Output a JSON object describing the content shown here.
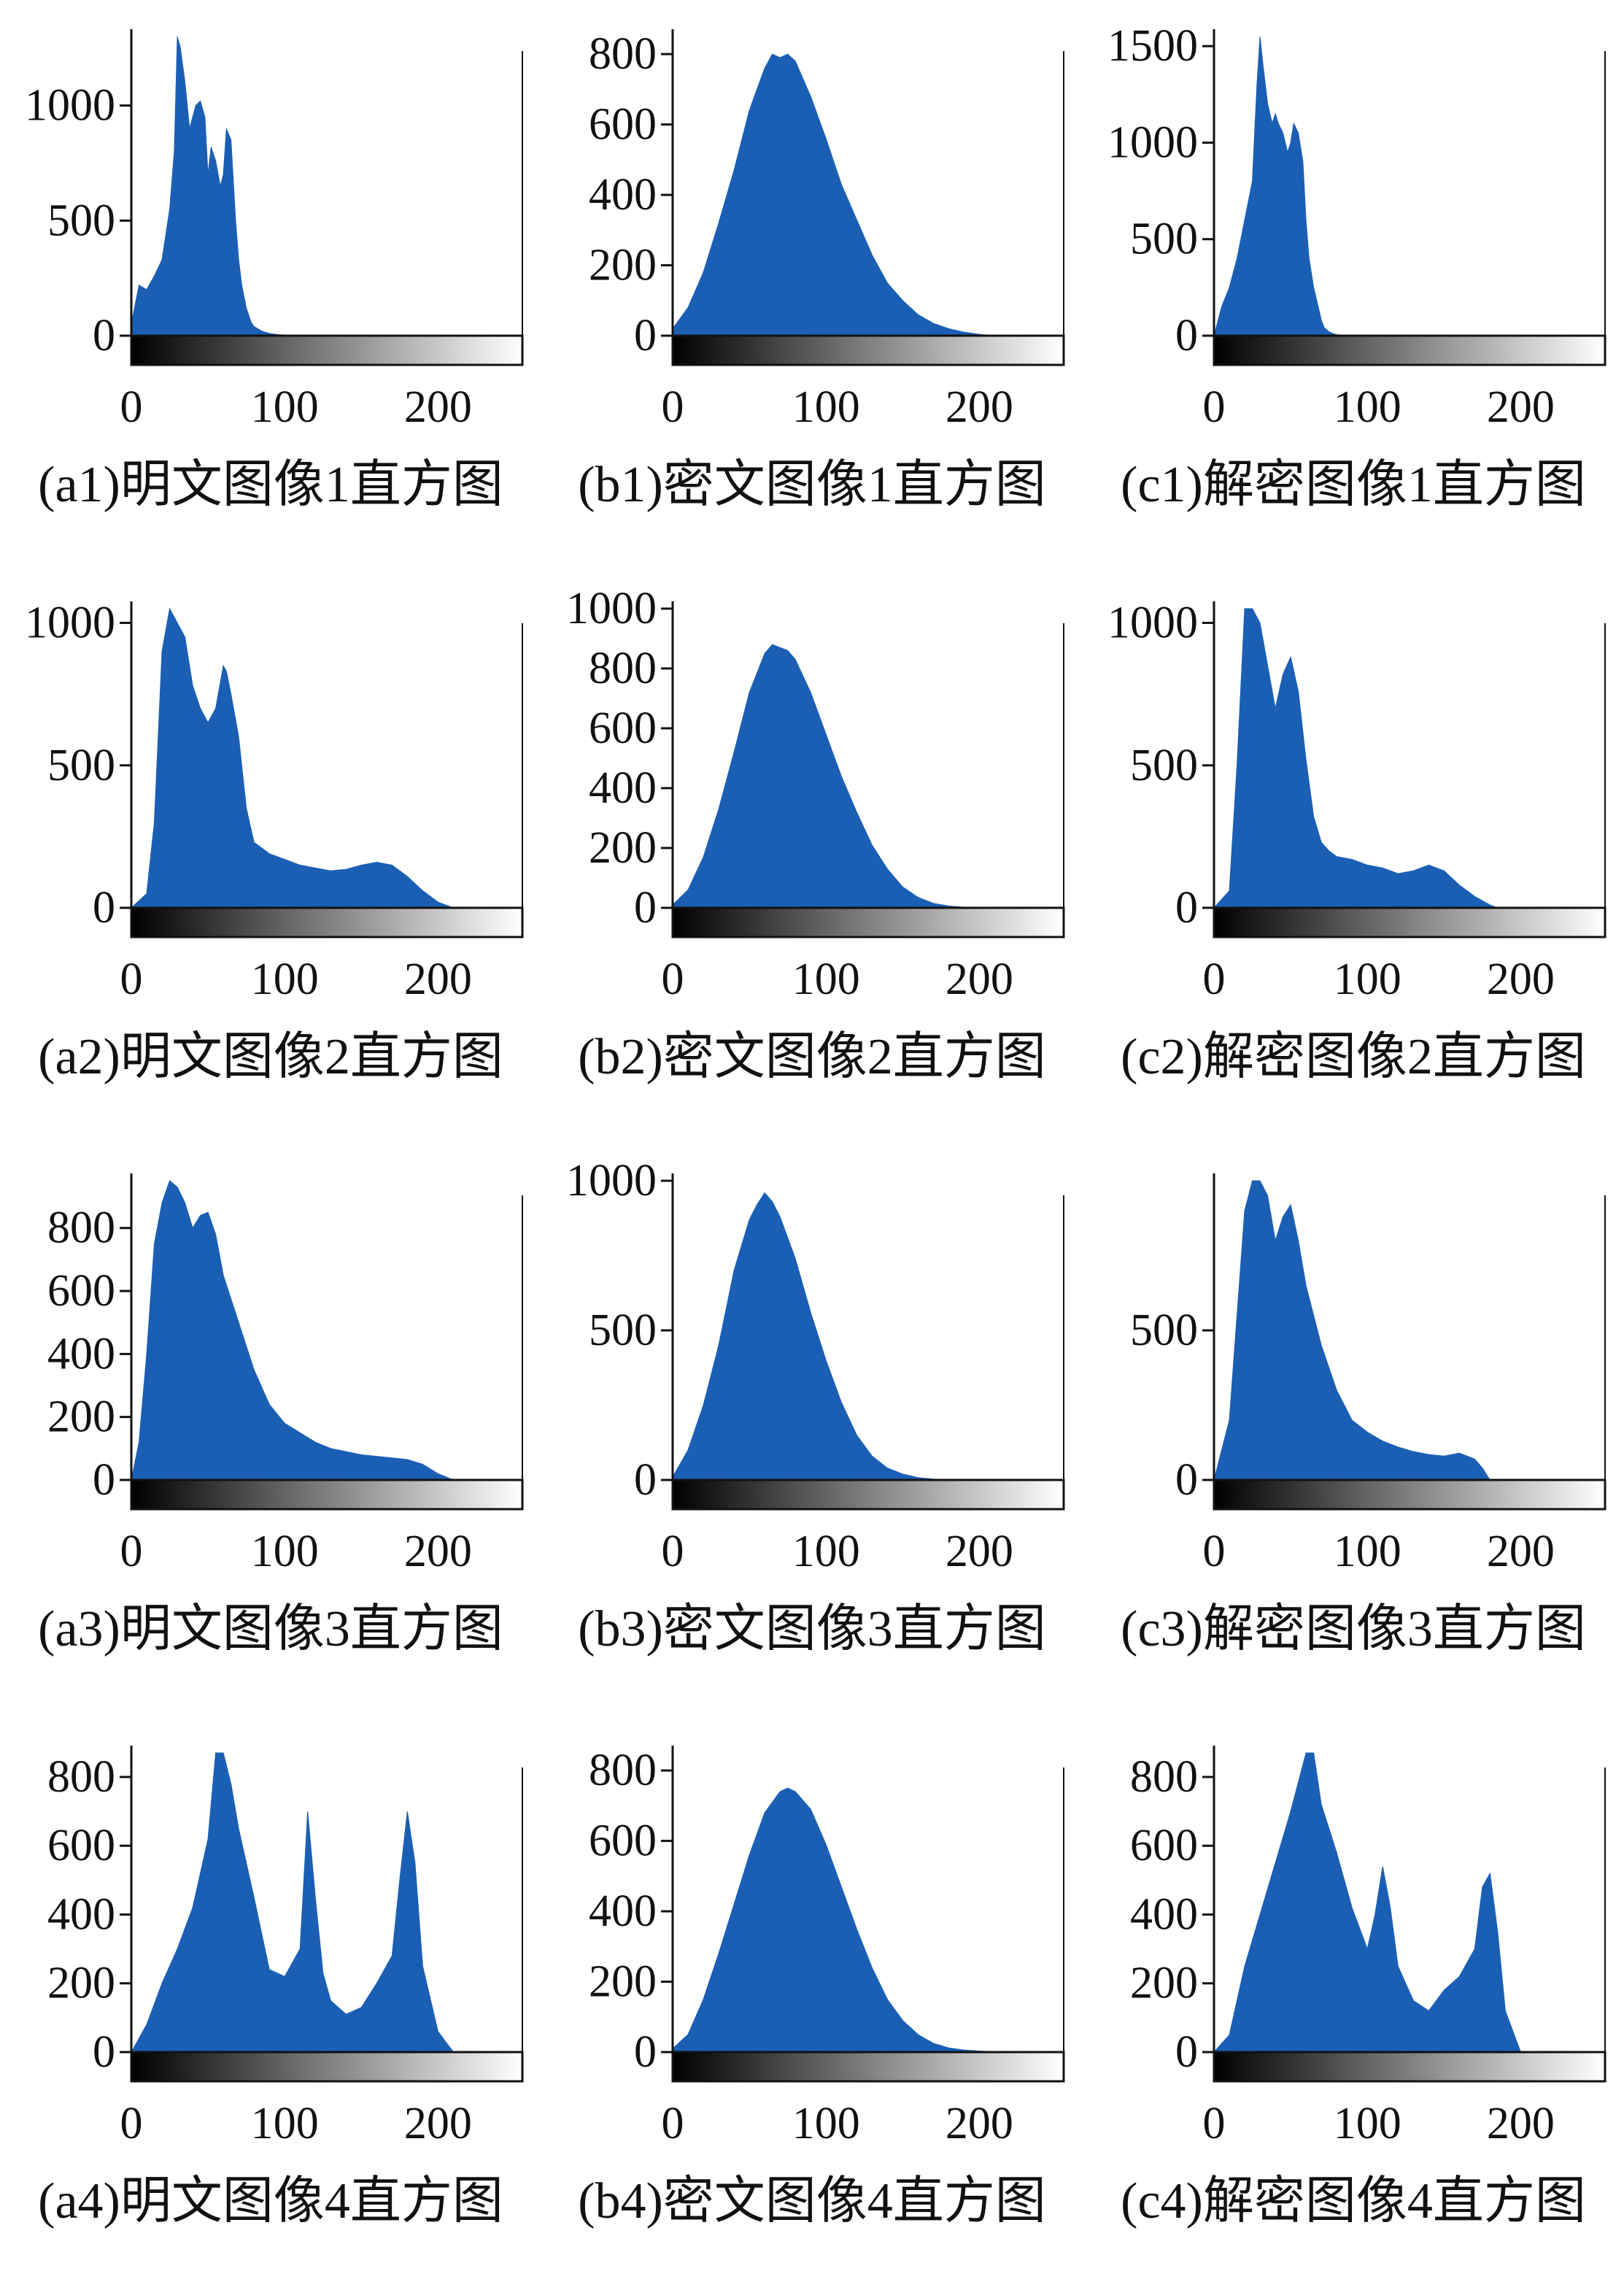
{
  "colors": {
    "bar": "#1a5fb4",
    "axis": "#111111",
    "background": "#ffffff"
  },
  "chart_data": [
    {
      "id": "a1",
      "caption": "(a1)明文图像1直方图",
      "type": "area",
      "xlim": [
        0,
        255
      ],
      "ylim": [
        0,
        1300
      ],
      "xticks": [
        0,
        100,
        200
      ],
      "yticks": [
        0,
        500,
        1000
      ],
      "x": [
        0,
        5,
        10,
        15,
        20,
        25,
        28,
        30,
        32,
        35,
        38,
        40,
        42,
        45,
        48,
        50,
        52,
        55,
        58,
        60,
        62,
        65,
        68,
        70,
        72,
        75,
        78,
        80,
        85,
        90,
        95,
        100,
        105,
        110,
        120
      ],
      "y": [
        50,
        220,
        200,
        260,
        330,
        550,
        800,
        1300,
        1250,
        1100,
        900,
        950,
        1000,
        1020,
        950,
        700,
        820,
        760,
        650,
        700,
        900,
        850,
        500,
        330,
        220,
        120,
        60,
        40,
        20,
        10,
        5,
        3,
        2,
        1,
        0
      ]
    },
    {
      "id": "b1",
      "caption": "(b1)密文图像1直方图",
      "type": "area",
      "xlim": [
        0,
        255
      ],
      "ylim": [
        0,
        850
      ],
      "xticks": [
        0,
        100,
        200
      ],
      "yticks": [
        0,
        200,
        400,
        600,
        800
      ],
      "x": [
        0,
        10,
        20,
        30,
        40,
        50,
        60,
        65,
        70,
        75,
        80,
        90,
        100,
        110,
        120,
        130,
        140,
        150,
        160,
        170,
        180,
        190,
        200,
        210
      ],
      "y": [
        20,
        80,
        180,
        320,
        470,
        640,
        760,
        800,
        790,
        800,
        780,
        680,
        560,
        430,
        330,
        230,
        150,
        100,
        60,
        35,
        20,
        10,
        4,
        0
      ]
    },
    {
      "id": "c1",
      "caption": "(c1)解密图像1直方图",
      "type": "area",
      "xlim": [
        0,
        255
      ],
      "ylim": [
        0,
        1550
      ],
      "xticks": [
        0,
        100,
        200
      ],
      "yticks": [
        0,
        500,
        1000,
        1500
      ],
      "x": [
        0,
        5,
        10,
        15,
        20,
        25,
        28,
        30,
        32,
        35,
        38,
        40,
        42,
        45,
        48,
        50,
        52,
        55,
        58,
        60,
        62,
        65,
        68,
        70,
        72,
        75,
        78,
        80,
        85,
        90,
        95,
        100,
        110
      ],
      "y": [
        0,
        150,
        250,
        400,
        600,
        800,
        1300,
        1600,
        1400,
        1200,
        1100,
        1150,
        1100,
        1050,
        950,
        1000,
        1100,
        1050,
        900,
        600,
        400,
        250,
        150,
        80,
        40,
        20,
        10,
        5,
        3,
        2,
        1,
        0,
        0
      ]
    },
    {
      "id": "a2",
      "caption": "(a2)明文图像2直方图",
      "type": "area",
      "xlim": [
        0,
        255
      ],
      "ylim": [
        0,
        1050
      ],
      "xticks": [
        0,
        100,
        200
      ],
      "yticks": [
        0,
        500,
        1000
      ],
      "x": [
        0,
        10,
        15,
        20,
        25,
        30,
        35,
        40,
        45,
        50,
        55,
        60,
        62,
        65,
        70,
        75,
        80,
        90,
        100,
        110,
        120,
        130,
        140,
        150,
        160,
        170,
        180,
        190,
        200,
        210
      ],
      "y": [
        0,
        50,
        300,
        900,
        1050,
        1000,
        950,
        780,
        700,
        650,
        700,
        850,
        830,
        750,
        600,
        350,
        230,
        190,
        170,
        150,
        140,
        130,
        135,
        150,
        160,
        150,
        110,
        60,
        20,
        0
      ]
    },
    {
      "id": "b2",
      "caption": "(b2)密文图像2直方图",
      "type": "area",
      "xlim": [
        0,
        255
      ],
      "ylim": [
        0,
        1000
      ],
      "xticks": [
        0,
        100,
        200
      ],
      "yticks": [
        0,
        200,
        400,
        600,
        800,
        1000
      ],
      "x": [
        0,
        10,
        20,
        30,
        40,
        50,
        60,
        65,
        70,
        75,
        80,
        90,
        100,
        110,
        120,
        130,
        140,
        150,
        160,
        170,
        180,
        190,
        200
      ],
      "y": [
        10,
        60,
        170,
        330,
        520,
        720,
        850,
        880,
        870,
        860,
        830,
        720,
        580,
        440,
        320,
        210,
        130,
        70,
        35,
        15,
        6,
        2,
        0
      ]
    },
    {
      "id": "c2",
      "caption": "(c2)解密图像2直方图",
      "type": "area",
      "xlim": [
        0,
        255
      ],
      "ylim": [
        0,
        1050
      ],
      "xticks": [
        0,
        100,
        200
      ],
      "yticks": [
        0,
        500,
        1000
      ],
      "x": [
        0,
        10,
        15,
        20,
        25,
        30,
        35,
        40,
        45,
        50,
        55,
        60,
        65,
        70,
        75,
        80,
        90,
        100,
        110,
        120,
        130,
        140,
        150,
        160,
        170,
        180,
        185
      ],
      "y": [
        0,
        60,
        500,
        1050,
        1050,
        1000,
        850,
        700,
        820,
        880,
        760,
        520,
        320,
        230,
        200,
        180,
        170,
        150,
        140,
        120,
        130,
        150,
        130,
        80,
        40,
        10,
        0
      ]
    },
    {
      "id": "a3",
      "caption": "(a3)明文图像3直方图",
      "type": "area",
      "xlim": [
        0,
        255
      ],
      "ylim": [
        0,
        950
      ],
      "xticks": [
        0,
        100,
        200
      ],
      "yticks": [
        0,
        200,
        400,
        600,
        800
      ],
      "x": [
        0,
        5,
        10,
        15,
        20,
        25,
        30,
        35,
        40,
        45,
        50,
        55,
        60,
        70,
        80,
        90,
        100,
        110,
        120,
        130,
        140,
        150,
        160,
        170,
        180,
        190,
        200,
        210
      ],
      "y": [
        0,
        120,
        400,
        750,
        880,
        950,
        930,
        880,
        800,
        840,
        850,
        780,
        650,
        500,
        350,
        240,
        180,
        150,
        120,
        100,
        90,
        80,
        75,
        70,
        65,
        50,
        20,
        0
      ]
    },
    {
      "id": "b3",
      "caption": "(b3)密文图像3直方图",
      "type": "area",
      "xlim": [
        0,
        255
      ],
      "ylim": [
        0,
        1000
      ],
      "xticks": [
        0,
        100,
        200
      ],
      "yticks": [
        0,
        500,
        1000
      ],
      "x": [
        0,
        10,
        20,
        30,
        40,
        50,
        55,
        60,
        65,
        70,
        80,
        90,
        100,
        110,
        120,
        130,
        140,
        150,
        160,
        170,
        180
      ],
      "y": [
        10,
        100,
        250,
        450,
        700,
        870,
        920,
        960,
        930,
        880,
        740,
        560,
        400,
        260,
        150,
        80,
        40,
        20,
        8,
        3,
        0
      ]
    },
    {
      "id": "c3",
      "caption": "(c3)解密图像3直方图",
      "type": "area",
      "xlim": [
        0,
        255
      ],
      "ylim": [
        0,
        1000
      ],
      "xticks": [
        0,
        100,
        200
      ],
      "yticks": [
        0,
        500
      ],
      "x": [
        0,
        10,
        15,
        20,
        25,
        30,
        35,
        40,
        45,
        50,
        55,
        60,
        70,
        80,
        90,
        100,
        110,
        120,
        130,
        140,
        150,
        160,
        170,
        175,
        180
      ],
      "y": [
        0,
        200,
        550,
        900,
        1000,
        1000,
        950,
        800,
        880,
        920,
        800,
        650,
        450,
        300,
        200,
        160,
        130,
        110,
        95,
        85,
        80,
        90,
        70,
        40,
        0
      ]
    },
    {
      "id": "a4",
      "caption": "(a4)明文图像4直方图",
      "type": "area",
      "xlim": [
        0,
        255
      ],
      "ylim": [
        0,
        870
      ],
      "xticks": [
        0,
        100,
        200
      ],
      "yticks": [
        0,
        200,
        400,
        600,
        800
      ],
      "x": [
        0,
        10,
        20,
        30,
        40,
        50,
        55,
        60,
        65,
        70,
        80,
        90,
        100,
        110,
        115,
        120,
        125,
        130,
        140,
        150,
        160,
        170,
        175,
        180,
        185,
        190,
        200,
        210
      ],
      "y": [
        0,
        80,
        200,
        300,
        420,
        620,
        870,
        870,
        780,
        650,
        450,
        240,
        220,
        300,
        700,
        450,
        230,
        150,
        110,
        130,
        200,
        280,
        500,
        700,
        550,
        250,
        60,
        0
      ]
    },
    {
      "id": "b4",
      "caption": "(b4)密文图像4直方图",
      "type": "area",
      "xlim": [
        0,
        255
      ],
      "ylim": [
        0,
        850
      ],
      "xticks": [
        0,
        100,
        200
      ],
      "yticks": [
        0,
        200,
        400,
        600,
        800
      ],
      "x": [
        0,
        10,
        20,
        30,
        40,
        50,
        60,
        70,
        75,
        80,
        90,
        100,
        110,
        120,
        130,
        140,
        150,
        160,
        170,
        180,
        190,
        200,
        210,
        220
      ],
      "y": [
        10,
        50,
        150,
        280,
        420,
        560,
        680,
        740,
        750,
        740,
        690,
        590,
        470,
        350,
        240,
        150,
        90,
        50,
        25,
        12,
        6,
        3,
        1,
        0
      ]
    },
    {
      "id": "c4",
      "caption": "(c4)解密图像4直方图",
      "type": "area",
      "xlim": [
        0,
        255
      ],
      "ylim": [
        0,
        870
      ],
      "xticks": [
        0,
        100,
        200
      ],
      "yticks": [
        0,
        200,
        400,
        600,
        800
      ],
      "x": [
        0,
        10,
        15,
        20,
        30,
        40,
        50,
        60,
        65,
        70,
        80,
        90,
        100,
        105,
        110,
        115,
        120,
        130,
        140,
        150,
        160,
        170,
        175,
        180,
        185,
        190,
        200
      ],
      "y": [
        0,
        50,
        150,
        250,
        400,
        550,
        700,
        870,
        870,
        720,
        580,
        420,
        300,
        400,
        540,
        420,
        250,
        150,
        120,
        180,
        220,
        300,
        480,
        520,
        350,
        120,
        0
      ]
    }
  ]
}
